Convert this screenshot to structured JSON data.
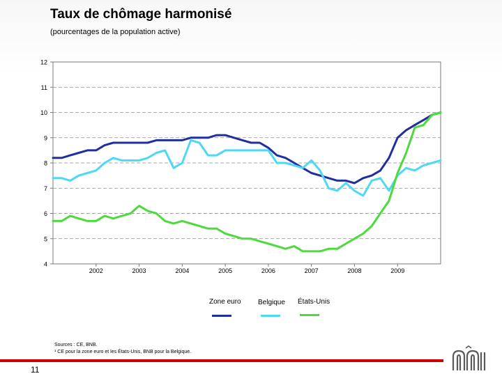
{
  "slide": {
    "title": "Taux de chômage harmonisé",
    "subtitle": "(pourcentages de la population active)",
    "sources_line1": "Sources : CE, BNB.",
    "sources_line2": "¹ CE pour la zone euro et les États-Unis, BNB pour la Belgique.",
    "page_number": "11",
    "accent_color": "#d00000"
  },
  "chart_data": {
    "type": "line",
    "title": "Taux de chômage harmonisé",
    "subtitle": "(pourcentages de la population active)",
    "ylim": [
      4,
      12
    ],
    "yticks": [
      4,
      5,
      6,
      7,
      8,
      9,
      10,
      11,
      12
    ],
    "xlim": [
      2001.0,
      2010.0
    ],
    "xticks": [
      {
        "label": "2002",
        "value": 2002.0
      },
      {
        "label": "2003",
        "value": 2003.0
      },
      {
        "label": "2004",
        "value": 2004.0
      },
      {
        "label": "2005",
        "value": 2005.0
      },
      {
        "label": "2006",
        "value": 2006.0
      },
      {
        "label": "2007",
        "value": 2007.0
      },
      {
        "label": "2008",
        "value": 2008.0
      },
      {
        "label": "2009",
        "value": 2009.0
      }
    ],
    "grid": "horizontal dashed",
    "legend_position": "bottom",
    "series": [
      {
        "name": "Zone euro",
        "color": "#1f2fa0",
        "x": [
          2001.0,
          2001.2,
          2001.4,
          2001.6,
          2001.8,
          2002.0,
          2002.2,
          2002.4,
          2002.6,
          2002.8,
          2003.0,
          2003.2,
          2003.4,
          2003.6,
          2003.8,
          2004.0,
          2004.2,
          2004.4,
          2004.6,
          2004.8,
          2005.0,
          2005.2,
          2005.4,
          2005.6,
          2005.8,
          2006.0,
          2006.2,
          2006.4,
          2006.6,
          2006.8,
          2007.0,
          2007.2,
          2007.4,
          2007.6,
          2007.8,
          2008.0,
          2008.2,
          2008.4,
          2008.6,
          2008.8,
          2009.0,
          2009.2,
          2009.4,
          2009.6,
          2009.8,
          2010.0
        ],
        "values": [
          8.2,
          8.2,
          8.3,
          8.4,
          8.5,
          8.5,
          8.7,
          8.8,
          8.8,
          8.8,
          8.8,
          8.8,
          8.9,
          8.9,
          8.9,
          8.9,
          9.0,
          9.0,
          9.0,
          9.1,
          9.1,
          9.0,
          8.9,
          8.8,
          8.8,
          8.6,
          8.3,
          8.2,
          8.0,
          7.8,
          7.6,
          7.5,
          7.4,
          7.3,
          7.3,
          7.2,
          7.4,
          7.5,
          7.7,
          8.2,
          9.0,
          9.3,
          9.5,
          9.7,
          9.9,
          10.0
        ]
      },
      {
        "name": "Belgique",
        "color": "#4dd9f5",
        "x": [
          2001.0,
          2001.2,
          2001.4,
          2001.6,
          2001.8,
          2002.0,
          2002.2,
          2002.4,
          2002.6,
          2002.8,
          2003.0,
          2003.2,
          2003.4,
          2003.6,
          2003.8,
          2004.0,
          2004.2,
          2004.4,
          2004.6,
          2004.8,
          2005.0,
          2005.2,
          2005.4,
          2005.6,
          2005.8,
          2006.0,
          2006.2,
          2006.4,
          2006.6,
          2006.8,
          2007.0,
          2007.2,
          2007.4,
          2007.6,
          2007.8,
          2008.0,
          2008.2,
          2008.4,
          2008.6,
          2008.8,
          2009.0,
          2009.2,
          2009.4,
          2009.6,
          2009.8,
          2010.0
        ],
        "values": [
          7.4,
          7.4,
          7.3,
          7.5,
          7.6,
          7.7,
          8.0,
          8.2,
          8.1,
          8.1,
          8.1,
          8.2,
          8.4,
          8.5,
          7.8,
          8.0,
          8.9,
          8.8,
          8.3,
          8.3,
          8.5,
          8.5,
          8.5,
          8.5,
          8.5,
          8.5,
          8.0,
          8.0,
          7.9,
          7.8,
          8.1,
          7.7,
          7.0,
          6.9,
          7.2,
          6.9,
          6.7,
          7.3,
          7.4,
          6.9,
          7.5,
          7.8,
          7.7,
          7.9,
          8.0,
          8.1
        ]
      },
      {
        "name": "États-Unis",
        "color": "#4ddb3b",
        "x": [
          2001.0,
          2001.2,
          2001.4,
          2001.6,
          2001.8,
          2002.0,
          2002.2,
          2002.4,
          2002.6,
          2002.8,
          2003.0,
          2003.2,
          2003.4,
          2003.6,
          2003.8,
          2004.0,
          2004.2,
          2004.4,
          2004.6,
          2004.8,
          2005.0,
          2005.2,
          2005.4,
          2005.6,
          2005.8,
          2006.0,
          2006.2,
          2006.4,
          2006.6,
          2006.8,
          2007.0,
          2007.2,
          2007.4,
          2007.6,
          2007.8,
          2008.0,
          2008.2,
          2008.4,
          2008.6,
          2008.8,
          2009.0,
          2009.2,
          2009.4,
          2009.6,
          2009.8,
          2010.0
        ],
        "values": [
          5.7,
          5.7,
          5.9,
          5.8,
          5.7,
          5.7,
          5.9,
          5.8,
          5.9,
          6.0,
          6.3,
          6.1,
          6.0,
          5.7,
          5.6,
          5.7,
          5.6,
          5.5,
          5.4,
          5.4,
          5.2,
          5.1,
          5.0,
          5.0,
          4.9,
          4.8,
          4.7,
          4.6,
          4.7,
          4.5,
          4.5,
          4.5,
          4.6,
          4.6,
          4.8,
          5.0,
          5.2,
          5.5,
          6.0,
          6.5,
          7.6,
          8.4,
          9.4,
          9.5,
          9.9,
          10.0
        ]
      }
    ]
  }
}
